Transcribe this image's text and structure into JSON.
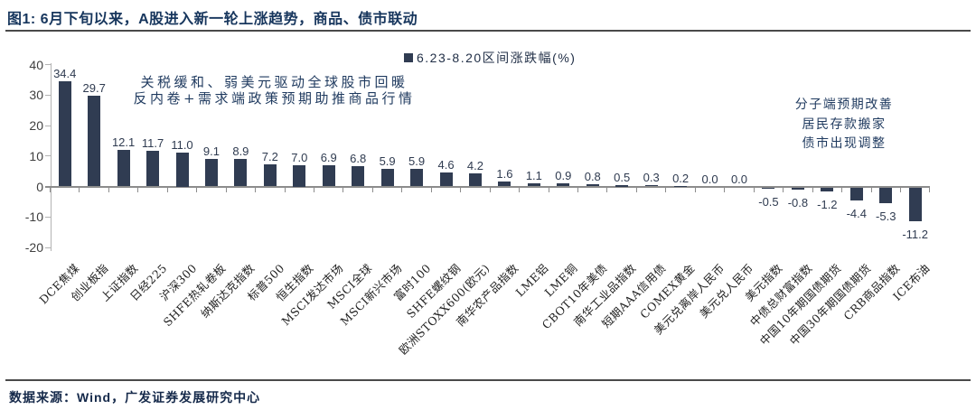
{
  "title": "图1: 6月下旬以来，A股进入新一轮上涨趋势，商品、债市联动",
  "legend": {
    "label": "6.23-8.20区间涨跌幅(%)"
  },
  "annotations": {
    "left": [
      "关税缓和、弱美元驱动全球股市回暖",
      "反内卷+需求端政策预期助推商品行情"
    ],
    "right": [
      "分子端预期改善",
      "居民存款搬家",
      "债市出现调整"
    ]
  },
  "footer": {
    "source": "数据来源：Wind，广发证券发展研究中心"
  },
  "colors": {
    "bar": "#303c52",
    "title_text": "#17365d",
    "axis_line": "#b3b3b3",
    "baseline": "#8c8c8c",
    "tick_label": "#404040",
    "value_label": "#2f3b50"
  },
  "chart_data": {
    "type": "bar",
    "title": "6.23-8.20区间涨跌幅(%)",
    "categories": [
      "DCE焦煤",
      "创业板指",
      "上证指数",
      "日经225",
      "沪深300",
      "SHFE热轧卷板",
      "纳斯达克指数",
      "标普500",
      "恒生指数",
      "MSCI发达市场",
      "MSCI全球",
      "MSCI新兴市场",
      "富时100",
      "SHFE螺纹钢",
      "欧洲STOXX600(欧元)",
      "南华农产品指数",
      "LME铝",
      "LME铜",
      "CBOT10年美债",
      "南华工业品指数",
      "短期AAA信用债",
      "COMEX黄金",
      "美元兑离岸人民币",
      "美元兑人民币",
      "美元指数",
      "中债总财富指数",
      "中国10年期国债期货",
      "中国30年期国债期货",
      "CRB商品指数",
      "ICE布油"
    ],
    "values": [
      34.4,
      29.7,
      12.1,
      11.7,
      11.0,
      9.1,
      8.9,
      7.2,
      7.0,
      6.9,
      6.8,
      5.9,
      5.9,
      4.6,
      4.2,
      1.6,
      1.1,
      0.9,
      0.8,
      0.5,
      0.3,
      0.2,
      0.0,
      0.0,
      -0.5,
      -0.8,
      -1.2,
      -4.4,
      -5.3,
      -11.2
    ],
    "ylabel": "",
    "xlabel": "",
    "ylim": [
      -20,
      40
    ],
    "yticks": [
      40,
      30,
      20,
      10,
      0,
      -10,
      -20
    ],
    "grid": false,
    "legend_position": "top-center",
    "value_labels_shown": true
  }
}
